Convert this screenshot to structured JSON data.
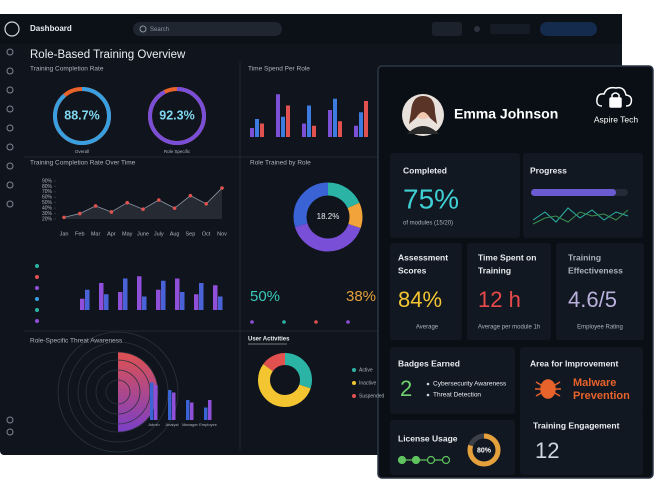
{
  "dashboard": {
    "title": "Dashboard",
    "search": "Search",
    "heading": "Role-Based Training Overview",
    "completion": {
      "title": "Training Completion Rate",
      "gauges": [
        {
          "value": 88.7,
          "label": "88.7%",
          "caption": "Overall"
        },
        {
          "value": 92.3,
          "label": "92.3%",
          "caption": "Role Specific"
        }
      ]
    },
    "time_per_role": {
      "title": "Time Spend Per Role",
      "series": [
        {
          "color": "#7b4fd6",
          "values": [
            20,
            95,
            30,
            60,
            25
          ]
        },
        {
          "color": "#3d7be0",
          "values": [
            40,
            45,
            70,
            85,
            55
          ]
        },
        {
          "color": "#e0514f",
          "values": [
            30,
            70,
            25,
            35,
            80
          ]
        }
      ]
    },
    "over_time": {
      "title": "Training Completion Rate Over Time",
      "categories": [
        "Jan",
        "Feb",
        "Mar",
        "Apr",
        "May",
        "June",
        "July",
        "Aug",
        "Sep",
        "Oct",
        "Nov"
      ],
      "values": [
        23,
        30,
        44,
        33,
        50,
        38,
        55,
        40,
        63,
        48,
        77
      ],
      "ylim": [
        20,
        90
      ],
      "yticks": [
        {
          "value": 90,
          "label": "90%"
        },
        {
          "value": 80,
          "label": "80%"
        },
        {
          "value": 70,
          "label": "70%"
        },
        {
          "value": 60,
          "label": "60%"
        },
        {
          "value": 50,
          "label": "50%"
        },
        {
          "value": 40,
          "label": "40%"
        },
        {
          "value": 30,
          "label": "30%"
        },
        {
          "value": 20,
          "label": "20%"
        }
      ]
    },
    "role_trained": {
      "title": "Role Trained by Role",
      "label": "18.2%",
      "segments": [
        {
          "color": "#2bb3a6",
          "value": 18.2
        },
        {
          "color": "#f2a33a",
          "value": 12
        },
        {
          "color": "#7a4fd8",
          "value": 40
        },
        {
          "color": "#3a63d6",
          "value": 29.8
        }
      ]
    },
    "activity": {
      "series": [
        {
          "color": "#8f4fd8",
          "values": [
            25,
            60,
            40,
            75,
            45,
            70,
            35,
            55
          ]
        },
        {
          "color": "#4a62d8",
          "values": [
            45,
            35,
            70,
            30,
            65,
            40,
            60,
            30
          ]
        }
      ]
    },
    "stats": [
      {
        "label": "50%",
        "color": "#39c9b9"
      },
      {
        "label": "38%",
        "color": "#e5a13b"
      }
    ],
    "user_activities": {
      "title": "User Activities",
      "legend": [
        {
          "name": "Active",
          "color": "#2bb3a6",
          "value": 30
        },
        {
          "name": "Inactive",
          "color": "#f2c531",
          "value": 55
        },
        {
          "name": "Suspended",
          "color": "#e0514f",
          "value": 15
        }
      ]
    },
    "threat": {
      "title": "Role-Specific Threat Awareness",
      "categories": [
        "Admin",
        "Analyst",
        "Manager",
        "Employee"
      ],
      "series": [
        {
          "color": "#3a63d6",
          "values": [
            75,
            60,
            40,
            25
          ]
        },
        {
          "color": "#8f4fd8",
          "values": [
            70,
            55,
            35,
            40
          ]
        }
      ]
    }
  },
  "profile": {
    "name": "Emma Johnson",
    "company": "Aspire Tech",
    "completed": {
      "title": "Completed",
      "value": "75%",
      "note": "of modules (15/20)"
    },
    "progress": {
      "title": "Progress"
    },
    "assessment": {
      "title": [
        "Assessment",
        "Scores"
      ],
      "value": "84%",
      "note": "Average"
    },
    "time_spent": {
      "title": [
        "Time Spent on",
        "Training"
      ],
      "value": "12 h",
      "note": "Average per module 1h"
    },
    "effectiveness": {
      "title": [
        "Training",
        "Effectiveness"
      ],
      "value": "4.6/5",
      "note": "Employee Rating"
    },
    "badges": {
      "title": "Badges Earned",
      "value": "2",
      "items": [
        "Cybersecurity Awareness",
        "Threat Detection"
      ]
    },
    "improvement": {
      "title": "Area for Improvement",
      "value": [
        "Malware",
        "Prevention"
      ]
    },
    "license": {
      "title": "License Usage",
      "value": 80,
      "label": "80%"
    },
    "engagement": {
      "title": "Training Engagement",
      "value": "12"
    }
  }
}
